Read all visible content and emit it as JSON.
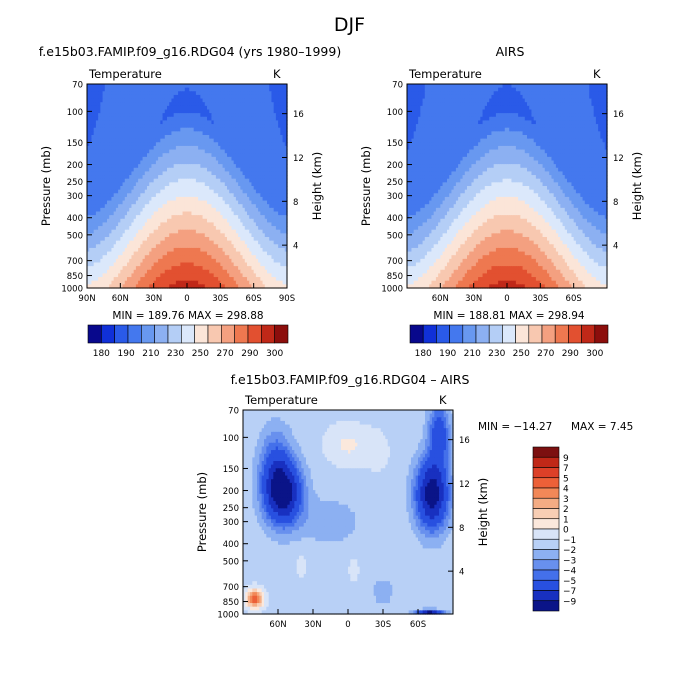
{
  "page": {
    "title": "DJF"
  },
  "chart_data": [
    {
      "type": "heatmap",
      "title": "f.e15b03.FAMIP.f09_g16.RDG04 (yrs 1980–1999)",
      "left_string": "Temperature",
      "right_string": "K",
      "ylabel": "Pressure (mb)",
      "ylabel_right": "Height (km)",
      "x_ticks": [
        "90N",
        "60N",
        "30N",
        "0",
        "30S",
        "60S",
        "90S"
      ],
      "y_ticks": [
        "70",
        "100",
        "150",
        "200",
        "250",
        "300",
        "400",
        "500",
        "700",
        "850",
        "1000"
      ],
      "height_ticks": [
        "16",
        "12",
        "8",
        "4"
      ],
      "stats": "MIN = 189.76   MAX = 298.88",
      "min": 189.76,
      "max": 298.88,
      "colorbar": [
        "180",
        "190",
        "200",
        "210",
        "220",
        "230",
        "240",
        "250",
        "260",
        "270",
        "280",
        "290",
        "300"
      ],
      "colorbar_labels": [
        "180",
        "190",
        "210",
        "230",
        "250",
        "270",
        "290",
        "300"
      ]
    },
    {
      "type": "heatmap",
      "title": "AIRS",
      "left_string": "Temperature",
      "right_string": "K",
      "ylabel": "Pressure (mb)",
      "ylabel_right": "Height (km)",
      "x_ticks": [
        "60N",
        "30N",
        "0",
        "30S",
        "60S"
      ],
      "y_ticks": [
        "70",
        "100",
        "150",
        "200",
        "250",
        "300",
        "400",
        "500",
        "700",
        "850",
        "1000"
      ],
      "height_ticks": [
        "16",
        "12",
        "8",
        "4"
      ],
      "stats": "MIN = 188.81   MAX = 298.94",
      "min": 188.81,
      "max": 298.94,
      "colorbar": [
        "180",
        "190",
        "200",
        "210",
        "220",
        "230",
        "240",
        "250",
        "260",
        "270",
        "280",
        "290",
        "300"
      ],
      "colorbar_labels": [
        "180",
        "190",
        "210",
        "230",
        "250",
        "270",
        "290",
        "300"
      ]
    },
    {
      "type": "heatmap",
      "title": "f.e15b03.FAMIP.f09_g16.RDG04 – AIRS",
      "left_string": "Temperature",
      "right_string": "K",
      "ylabel": "Pressure (mb)",
      "ylabel_right": "Height (km)",
      "x_ticks": [
        "60N",
        "30N",
        "0",
        "30S",
        "60S"
      ],
      "y_ticks": [
        "70",
        "100",
        "150",
        "200",
        "250",
        "300",
        "400",
        "500",
        "700",
        "850",
        "1000"
      ],
      "height_ticks": [
        "16",
        "12",
        "8",
        "4"
      ],
      "stats_min": "MIN = −14.27",
      "stats_max": "MAX =    7.45",
      "min": -14.27,
      "max": 7.45,
      "colorbar_labels": [
        "9",
        "7",
        "5",
        "4",
        "3",
        "2",
        "1",
        "0",
        "−1",
        "−2",
        "−3",
        "−4",
        "−5",
        "−7",
        "−9"
      ]
    }
  ],
  "colors": {
    "temperature_scale": [
      "#08088c",
      "#1030d8",
      "#2a5ae8",
      "#4478ee",
      "#6898f0",
      "#8cb0f2",
      "#b4cef6",
      "#dbe8fb",
      "#fbe5d8",
      "#f8c8b0",
      "#f4a080",
      "#ee7850",
      "#e25030",
      "#c02818",
      "#8c0e0c"
    ],
    "difference_scale": [
      "#7c1010",
      "#c02818",
      "#dc4028",
      "#ec6038",
      "#f28858",
      "#f4ac84",
      "#f8ceb4",
      "#fbe8dc",
      "#d8e4f8",
      "#b8d0f6",
      "#8cb0f2",
      "#6890ee",
      "#4470ea",
      "#2850e0",
      "#1830c0",
      "#0a1488"
    ]
  }
}
